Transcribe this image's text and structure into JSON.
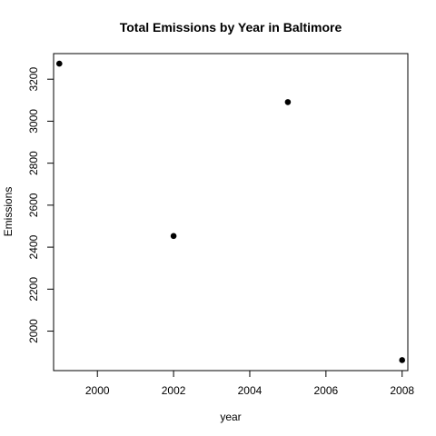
{
  "chart_data": {
    "type": "scatter",
    "title": "Total Emissions by Year in Baltimore",
    "xlabel": "year",
    "ylabel": "Emissions",
    "x": [
      1999,
      2002,
      2005,
      2008
    ],
    "y": [
      3274,
      2453,
      3091,
      1862
    ],
    "xlim": [
      1998.85,
      2008.15
    ],
    "ylim": [
      1812,
      3322
    ],
    "xticks": [
      2000,
      2002,
      2004,
      2006,
      2008
    ],
    "yticks": [
      2000,
      2200,
      2400,
      2600,
      2800,
      3000,
      3200
    ],
    "grid": false,
    "legend": "none",
    "point_color": "#000000"
  }
}
